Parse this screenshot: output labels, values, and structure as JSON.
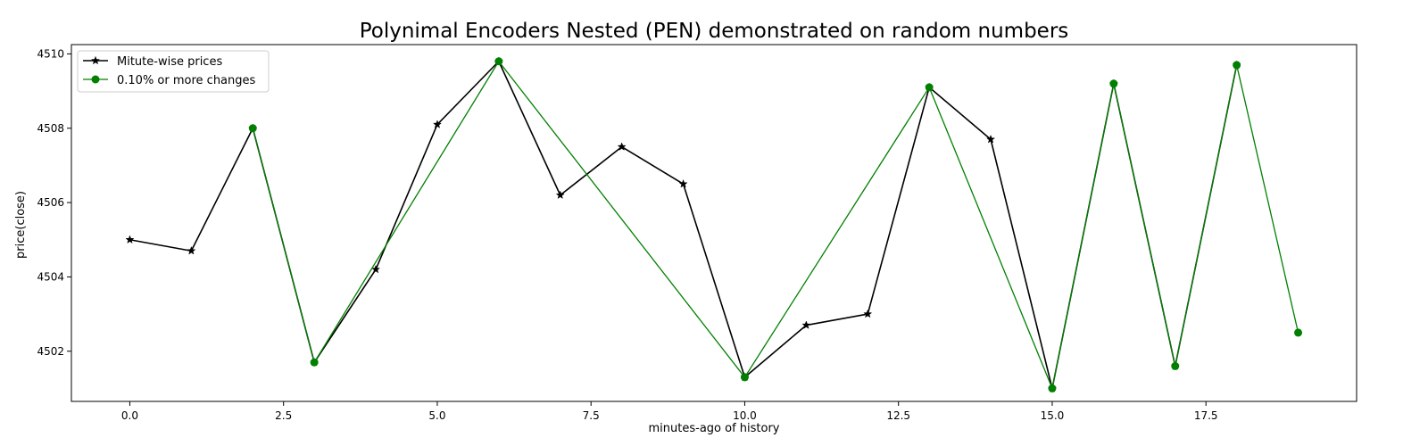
{
  "chart_data": {
    "type": "line",
    "title": "Polynimal Encoders Nested (PEN) demonstrated on random numbers",
    "xlabel": "minutes-ago of history",
    "ylabel": "price(close)",
    "xlim": [
      -0.95,
      19.95
    ],
    "ylim": [
      4500.65,
      4510.25
    ],
    "x_ticks": [
      0.0,
      2.5,
      5.0,
      7.5,
      10.0,
      12.5,
      15.0,
      17.5
    ],
    "x_tick_labels": [
      "0.0",
      "2.5",
      "5.0",
      "7.5",
      "10.0",
      "12.5",
      "15.0",
      "17.5"
    ],
    "y_ticks": [
      4502,
      4504,
      4506,
      4508,
      4510
    ],
    "y_tick_labels": [
      "4502",
      "4504",
      "4506",
      "4508",
      "4510"
    ],
    "grid": false,
    "legend_position": "top-left",
    "series": [
      {
        "name": "Mitute-wise prices",
        "color": "#000000",
        "marker": "star",
        "x": [
          0,
          1,
          2,
          3,
          4,
          5,
          6,
          7,
          8,
          9,
          10,
          11,
          12,
          13,
          14,
          15,
          16,
          17,
          18
        ],
        "y": [
          4505.0,
          4504.7,
          4508.0,
          4501.7,
          4504.2,
          4508.1,
          4509.8,
          4506.2,
          4507.5,
          4506.5,
          4501.3,
          4502.7,
          4503.0,
          4509.1,
          4507.7,
          4501.0,
          4509.2,
          4501.6,
          4509.7
        ]
      },
      {
        "name": "0.10% or more changes",
        "color": "#008000",
        "marker": "circle",
        "x": [
          2,
          3,
          6,
          10,
          13,
          15,
          16,
          17,
          18,
          19
        ],
        "y": [
          4508.0,
          4501.7,
          4509.8,
          4501.3,
          4509.1,
          4501.0,
          4509.2,
          4501.6,
          4509.7,
          4502.5
        ]
      }
    ]
  }
}
